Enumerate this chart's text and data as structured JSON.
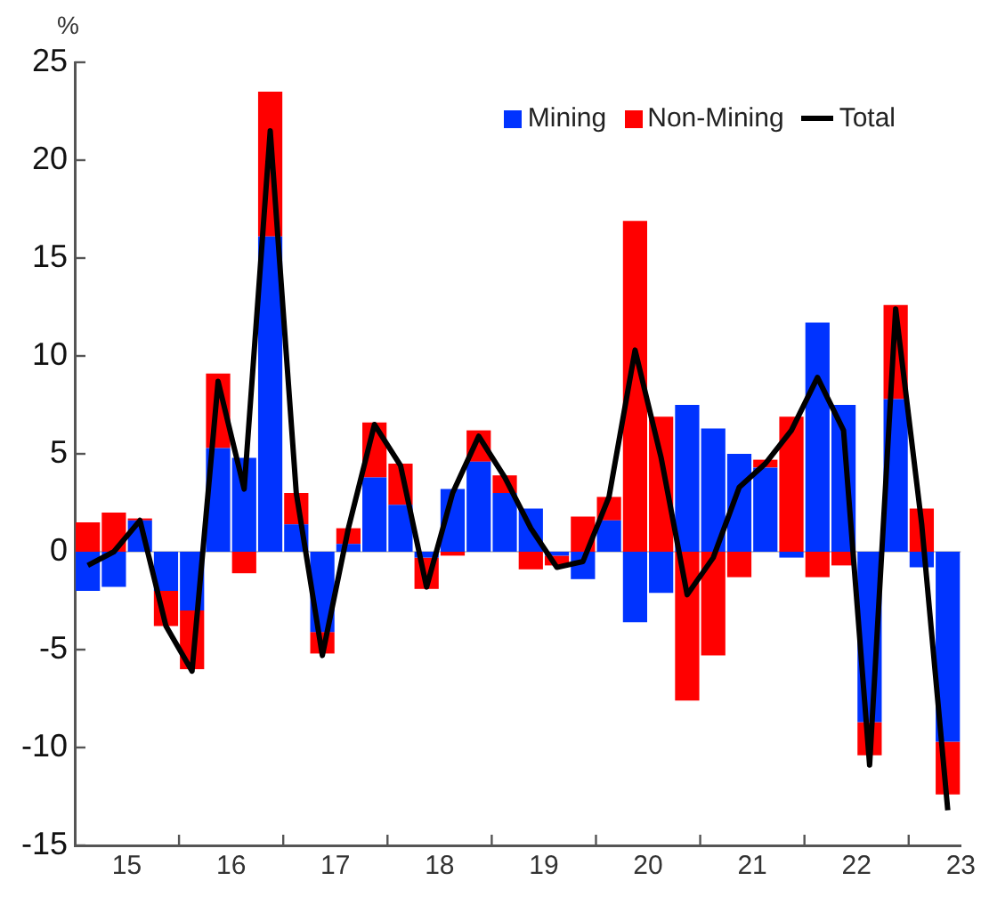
{
  "chart_data": {
    "type": "bar",
    "stacked": true,
    "ylabel": "%",
    "legend": "top right",
    "grid": false,
    "x": [
      14.625,
      14.875,
      15.125,
      15.375,
      15.625,
      15.875,
      16.125,
      16.375,
      16.625,
      16.875,
      17.125,
      17.375,
      17.625,
      17.875,
      18.125,
      18.375,
      18.625,
      18.875,
      19.125,
      19.375,
      19.625,
      19.875,
      20.125,
      20.375,
      20.625,
      20.875,
      21.125,
      21.375,
      21.625,
      21.875,
      22.125,
      22.375,
      22.625,
      22.875
    ],
    "xlim": [
      14.5,
      23
    ],
    "xticks": [
      15,
      {
        "value": 15.5,
        "label": null
      },
      16,
      {
        "value": 16.5,
        "label": null
      },
      17,
      {
        "value": 17.5,
        "label": null
      },
      18,
      {
        "value": 18.5,
        "label": null
      },
      19,
      {
        "value": 19.5,
        "label": null
      },
      20,
      {
        "value": 20.5,
        "label": null
      },
      21,
      {
        "value": 21.5,
        "label": null
      },
      22,
      {
        "value": 22.5,
        "label": null
      },
      23
    ],
    "ylim": [
      -15,
      25
    ],
    "yticks": [
      -15,
      -10,
      -5,
      0,
      5,
      10,
      15,
      20,
      25
    ],
    "ref_lines": [
      {
        "axis": "y",
        "value": 0,
        "color": "#c8c8c8"
      }
    ],
    "series": [
      {
        "name": "Mining",
        "color": "#0033ff",
        "values": [
          -2.0,
          -1.8,
          1.6,
          -2.0,
          -3.0,
          5.3,
          4.8,
          16.1,
          1.4,
          -4.1,
          0.4,
          3.8,
          2.4,
          -0.3,
          3.2,
          4.6,
          3.0,
          2.2,
          -0.2,
          -1.4,
          1.6,
          -3.6,
          -2.1,
          7.5,
          6.3,
          5.0,
          4.3,
          -0.3,
          11.7,
          7.5,
          -8.7,
          7.8,
          -0.8,
          -9.7
        ]
      },
      {
        "name": "Non-Mining",
        "color": "#ff0000",
        "values": [
          1.5,
          2.0,
          0.1,
          -1.8,
          -3.0,
          3.8,
          -1.1,
          7.4,
          1.6,
          -1.1,
          0.8,
          2.8,
          2.1,
          -1.6,
          -0.2,
          1.6,
          0.9,
          -0.9,
          -0.5,
          1.8,
          1.2,
          16.9,
          6.9,
          -7.6,
          -5.3,
          -1.3,
          0.4,
          6.9,
          -1.3,
          -0.7,
          -1.7,
          4.8,
          2.2,
          -2.7
        ]
      },
      {
        "name": "Total",
        "type": "line",
        "color": "#000000",
        "values": [
          -0.7,
          0.0,
          1.6,
          -3.8,
          -6.1,
          8.7,
          3.2,
          21.5,
          3.0,
          -5.3,
          1.2,
          6.5,
          4.4,
          -1.8,
          3.0,
          5.9,
          3.8,
          1.2,
          -0.8,
          -0.5,
          2.8,
          10.3,
          4.8,
          -2.2,
          -0.3,
          3.3,
          4.5,
          6.2,
          8.9,
          6.2,
          -10.9,
          12.4,
          1.4,
          -13.2
        ]
      }
    ]
  }
}
